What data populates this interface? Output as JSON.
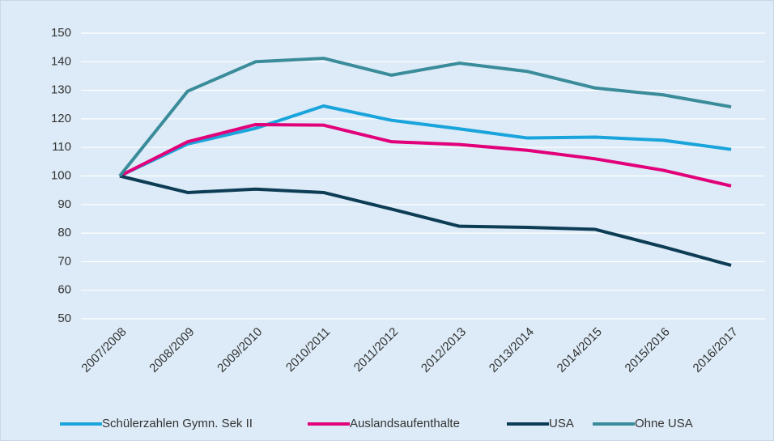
{
  "chart_data": {
    "type": "line",
    "categories": [
      "2007/2008",
      "2008/2009",
      "2009/2010",
      "2010/2011",
      "2011/2012",
      "2012/2013",
      "2013/2014",
      "2014/2015",
      "2015/2016",
      "2016/2017"
    ],
    "series": [
      {
        "name": "Schülerzahlen Gymn. Sek II",
        "color": "#1aa4dc",
        "values": [
          100,
          111.2,
          116.7,
          124.5,
          119.5,
          116.5,
          113.3,
          113.6,
          112.5,
          109.3
        ]
      },
      {
        "name": "Auslandsaufenthalte",
        "color": "#e2007a",
        "values": [
          100,
          112,
          118,
          117.8,
          112,
          111,
          109,
          106,
          102,
          96.5
        ]
      },
      {
        "name": "USA",
        "color": "#0d3c55",
        "values": [
          100,
          94.2,
          95.4,
          94.2,
          88.4,
          82.4,
          82,
          81.3,
          75.2,
          68.7
        ]
      },
      {
        "name": "Ohne USA",
        "color": "#3b8c9a",
        "values": [
          100,
          129.7,
          140,
          141.2,
          135.3,
          139.5,
          136.6,
          130.8,
          128.4,
          124.2
        ]
      }
    ],
    "ylim": [
      50,
      150
    ],
    "yticks": [
      50,
      60,
      70,
      80,
      90,
      100,
      110,
      120,
      130,
      140,
      150
    ],
    "grid": true
  }
}
